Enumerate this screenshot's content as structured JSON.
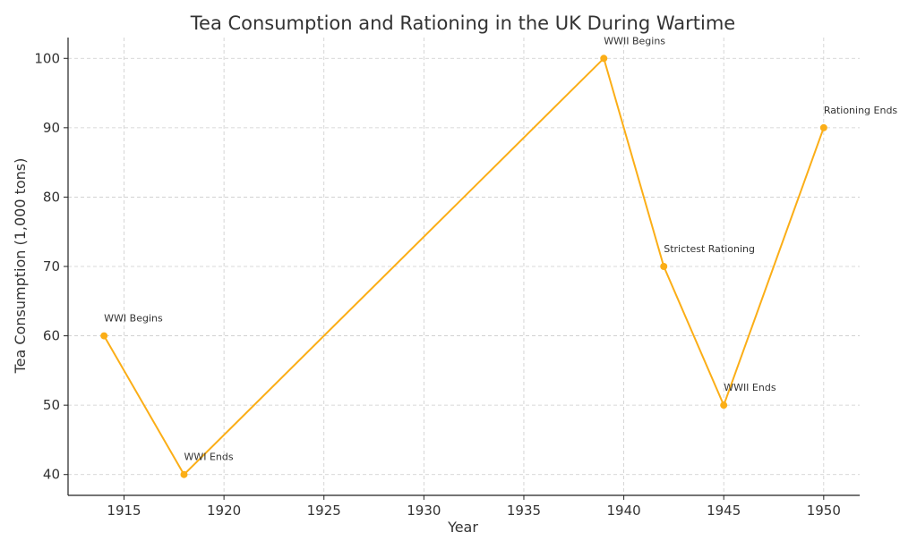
{
  "chart_data": {
    "type": "line",
    "title": "Tea Consumption and Rationing in the UK During Wartime",
    "xlabel": "Year",
    "ylabel": "Tea Consumption (1,000 tons)",
    "xlim": [
      1912.2,
      1951.8
    ],
    "ylim": [
      37,
      103
    ],
    "xticks": [
      1915,
      1920,
      1925,
      1930,
      1935,
      1940,
      1945,
      1950
    ],
    "yticks": [
      40,
      50,
      60,
      70,
      80,
      90,
      100
    ],
    "grid": true,
    "line_color": "#FBAE17",
    "series": [
      {
        "x": [
          1914,
          1918,
          1939,
          1942,
          1945,
          1950
        ],
        "values": [
          60,
          40,
          100,
          70,
          50,
          90
        ]
      }
    ],
    "annotations": [
      {
        "x": 1914,
        "y": 60,
        "text": "WWI Begins"
      },
      {
        "x": 1918,
        "y": 40,
        "text": "WWI Ends"
      },
      {
        "x": 1939,
        "y": 100,
        "text": "WWII Begins"
      },
      {
        "x": 1942,
        "y": 70,
        "text": "Strictest Rationing"
      },
      {
        "x": 1945,
        "y": 50,
        "text": "WWII Ends"
      },
      {
        "x": 1950,
        "y": 90,
        "text": "Rationing Ends"
      }
    ]
  }
}
